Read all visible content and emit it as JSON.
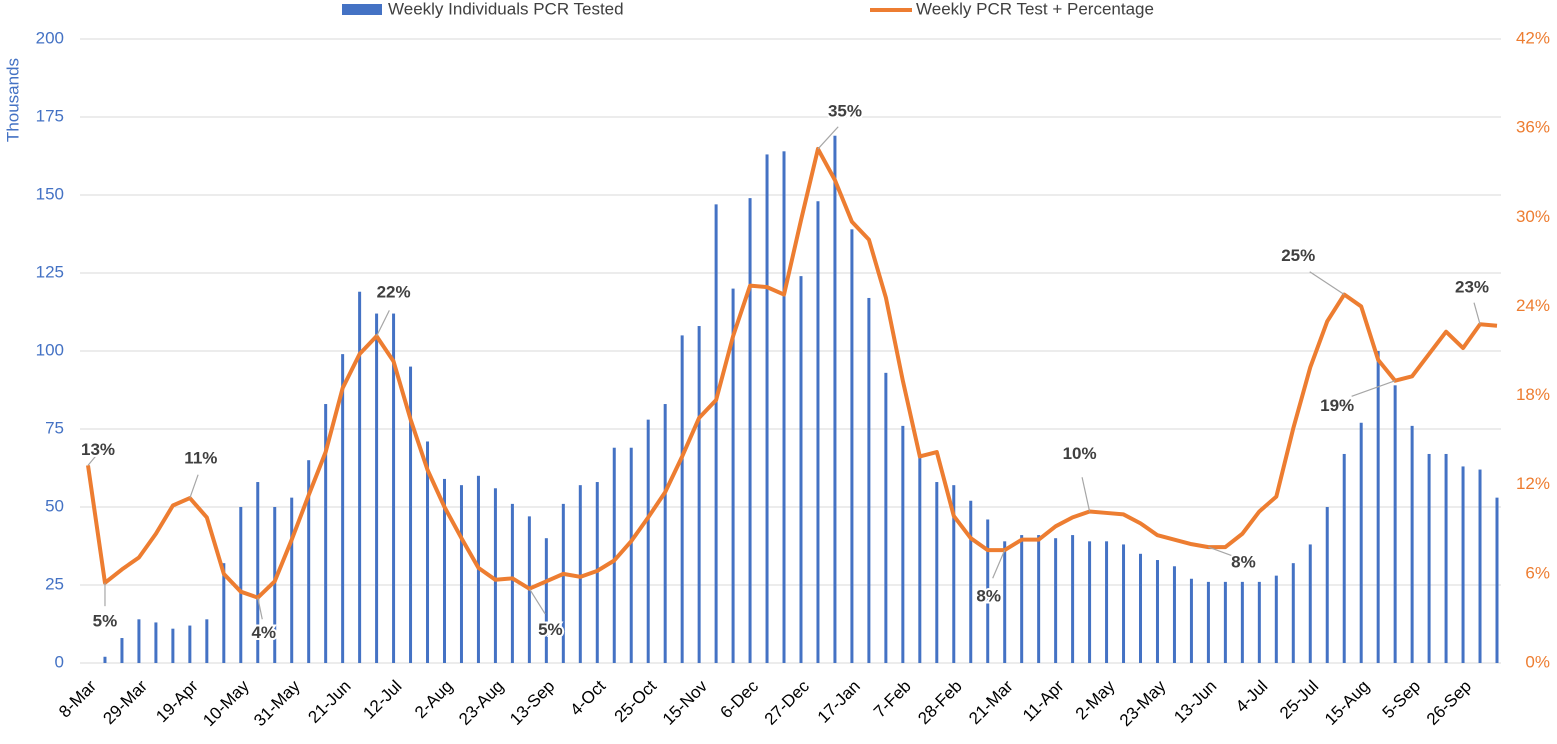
{
  "chart_data": {
    "type": "bar-line",
    "y_label": "Thousands",
    "categories": [
      "8-Mar",
      null,
      null,
      "29-Mar",
      null,
      null,
      "19-Apr",
      null,
      null,
      "10-May",
      null,
      null,
      "31-May",
      null,
      null,
      "21-Jun",
      null,
      null,
      "12-Jul",
      null,
      null,
      "2-Aug",
      null,
      null,
      "23-Aug",
      null,
      null,
      "13-Sep",
      null,
      null,
      "4-Oct",
      null,
      null,
      "25-Oct",
      null,
      null,
      "15-Nov",
      null,
      null,
      "6-Dec",
      null,
      null,
      "27-Dec",
      null,
      null,
      "17-Jan",
      null,
      null,
      "7-Feb",
      null,
      null,
      "28-Feb",
      null,
      null,
      "21-Mar",
      null,
      null,
      "11-Apr",
      null,
      null,
      "2-May",
      null,
      null,
      "23-May",
      null,
      null,
      "13-Jun",
      null,
      null,
      "4-Jul",
      null,
      null,
      "25-Jul",
      null,
      null,
      "15-Aug",
      null,
      null,
      "5-Sep",
      null,
      null,
      "26-Sep",
      null,
      null
    ],
    "series": [
      {
        "name": "Weekly Individuals PCR Tested",
        "type": "bar",
        "color": "#4472c4",
        "values": [
          0,
          2,
          8,
          14,
          13,
          11,
          12,
          14,
          32,
          50,
          58,
          50,
          53,
          65,
          83,
          99,
          119,
          112,
          112,
          95,
          71,
          59,
          57,
          60,
          56,
          51,
          47,
          40,
          51,
          57,
          58,
          69,
          69,
          78,
          83,
          105,
          108,
          147,
          120,
          149,
          163,
          164,
          124,
          148,
          169,
          139,
          117,
          93,
          76,
          67,
          58,
          57,
          52,
          46,
          39,
          41,
          41,
          40,
          41,
          39,
          39,
          38,
          35,
          33,
          31,
          27,
          26,
          26,
          26,
          26,
          28,
          32,
          38,
          50,
          67,
          77,
          100,
          89,
          76,
          67,
          67,
          63,
          62,
          53
        ]
      },
      {
        "name": "Weekly PCR Test + Percentage",
        "type": "line",
        "axis": "y2",
        "color": "#ed7d31",
        "values": [
          13.3,
          5.4,
          6.3,
          7.1,
          8.7,
          10.6,
          11.1,
          9.8,
          6.0,
          4.8,
          4.4,
          5.5,
          8.3,
          11.3,
          14.2,
          18.5,
          20.8,
          22.0,
          20.3,
          16.4,
          13.0,
          10.5,
          8.4,
          6.4,
          5.6,
          5.7,
          5.0,
          5.5,
          6.0,
          5.8,
          6.2,
          6.9,
          8.2,
          9.8,
          11.5,
          13.9,
          16.5,
          17.7,
          22.0,
          25.4,
          25.3,
          24.8,
          29.8,
          34.6,
          32.5,
          29.7,
          28.5,
          24.6,
          19.0,
          13.9,
          14.2,
          9.9,
          8.4,
          7.6,
          7.6,
          8.3,
          8.3,
          9.2,
          9.8,
          10.2,
          10.1,
          10.0,
          9.4,
          8.6,
          8.3,
          8.0,
          7.8,
          7.8,
          8.7,
          10.2,
          11.2,
          15.8,
          19.9,
          23.0,
          24.8,
          24.0,
          20.4,
          19.0,
          19.3,
          20.8,
          22.3,
          21.2,
          22.8,
          22.7
        ],
        "value_labels": [
          "13%",
          "5%",
          null,
          null,
          null,
          null,
          "11%",
          null,
          null,
          null,
          "4%",
          null,
          null,
          null,
          null,
          null,
          null,
          "22%",
          null,
          null,
          null,
          null,
          null,
          null,
          null,
          null,
          "5%",
          null,
          null,
          null,
          null,
          null,
          null,
          null,
          null,
          null,
          null,
          null,
          null,
          null,
          null,
          null,
          null,
          "35%",
          null,
          null,
          null,
          null,
          null,
          null,
          null,
          null,
          null,
          null,
          "8%",
          null,
          null,
          null,
          null,
          "10%",
          null,
          null,
          null,
          null,
          null,
          null,
          "8%",
          null,
          null,
          null,
          null,
          null,
          null,
          null,
          "25%",
          null,
          null,
          "19%",
          null,
          null,
          null,
          null,
          "23%",
          null
        ]
      }
    ],
    "ylim": [
      0,
      200
    ],
    "yticks": [
      0,
      25,
      50,
      75,
      100,
      125,
      150,
      175,
      200
    ],
    "y2lim": [
      0,
      42
    ],
    "y2ticks": [
      {
        "value": 0,
        "label": "0%"
      },
      {
        "value": 6,
        "label": "6%"
      },
      {
        "value": 12,
        "label": "12%"
      },
      {
        "value": 18,
        "label": "18%"
      },
      {
        "value": 24,
        "label": "24%"
      },
      {
        "value": 30,
        "label": "30%"
      },
      {
        "value": 36,
        "label": "36%"
      },
      {
        "value": 42,
        "label": "42%"
      }
    ],
    "grid": true,
    "legend": "top"
  }
}
